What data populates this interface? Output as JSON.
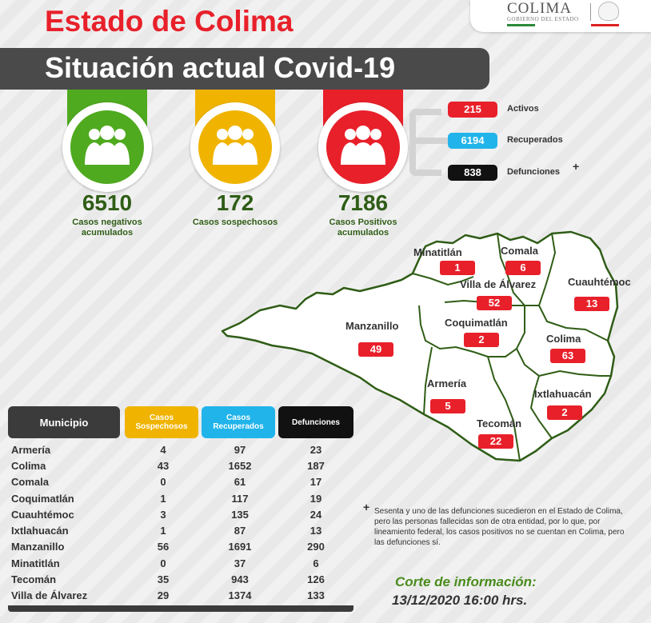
{
  "header": {
    "title": "Estado de Colima",
    "subtitle": "Situación actual Covid-19"
  },
  "logo": {
    "text": "COLIMA",
    "sub": "GOBIERNO DEL ESTADO"
  },
  "colors": {
    "red": "#e8202a",
    "green": "#4faa1f",
    "yellow": "#f0b400",
    "blue": "#21b4ea",
    "black": "#111111",
    "dark_green_text": "#2f5d16"
  },
  "stats": [
    {
      "value": "6510",
      "label": "Casos negativos acumulados",
      "color": "#4faa1f",
      "icon": "people-group-icon"
    },
    {
      "value": "172",
      "label": "Casos sospechosos",
      "color": "#f0b400",
      "icon": "people-group-icon"
    },
    {
      "value": "7186",
      "label": "Casos Positivos acumulados",
      "color": "#e8202a",
      "icon": "people-group-icon"
    }
  ],
  "breakdown": [
    {
      "value": "215",
      "label": "Activos",
      "color": "#e8202a"
    },
    {
      "value": "6194",
      "label": "Recuperados",
      "color": "#21b4ea"
    },
    {
      "value": "838",
      "label": "Defunciones",
      "color": "#111111",
      "mark": "+"
    }
  ],
  "map": {
    "municipalities": [
      {
        "name": "Minatitlán",
        "value": "1"
      },
      {
        "name": "Comala",
        "value": "6"
      },
      {
        "name": "Villa de Álvarez",
        "value": "52"
      },
      {
        "name": "Cuauhtémoc",
        "value": "13"
      },
      {
        "name": "Manzanillo",
        "value": "49"
      },
      {
        "name": "Coquimatlán",
        "value": "2"
      },
      {
        "name": "Colima",
        "value": "63"
      },
      {
        "name": "Armería",
        "value": "5"
      },
      {
        "name": "Ixtlahuacán",
        "value": "2"
      },
      {
        "name": "Tecomán",
        "value": "22"
      }
    ]
  },
  "table": {
    "headers": {
      "municipio": "Municipio",
      "sospechosos_1": "Casos",
      "sospechosos_2": "Sospechosos",
      "recuperados_1": "Casos",
      "recuperados_2": "Recuperados",
      "defunciones": "Defunciones"
    },
    "rows": [
      {
        "municipio": "Armería",
        "sospechosos": "4",
        "recuperados": "97",
        "defunciones": "23"
      },
      {
        "municipio": "Colima",
        "sospechosos": "43",
        "recuperados": "1652",
        "defunciones": "187"
      },
      {
        "municipio": "Comala",
        "sospechosos": "0",
        "recuperados": "61",
        "defunciones": "17"
      },
      {
        "municipio": "Coquimatlán",
        "sospechosos": "1",
        "recuperados": "117",
        "defunciones": "19"
      },
      {
        "municipio": "Cuauhtémoc",
        "sospechosos": "3",
        "recuperados": "135",
        "defunciones": "24"
      },
      {
        "municipio": "Ixtlahuacán",
        "sospechosos": "1",
        "recuperados": "87",
        "defunciones": "13"
      },
      {
        "municipio": "Manzanillo",
        "sospechosos": "56",
        "recuperados": "1691",
        "defunciones": "290"
      },
      {
        "municipio": "Minatitlán",
        "sospechosos": "0",
        "recuperados": "37",
        "defunciones": "6"
      },
      {
        "municipio": "Tecomán",
        "sospechosos": "35",
        "recuperados": "943",
        "defunciones": "126"
      },
      {
        "municipio": "Villa de Álvarez",
        "sospechosos": "29",
        "recuperados": "1374",
        "defunciones": "133"
      }
    ]
  },
  "note": {
    "mark": "+",
    "text": "Sesenta y uno de las defunciones sucedieron en el Estado de Colima, pero las personas fallecidas son de otra entidad, por lo que, por lineamiento federal, los casos positivos no se cuentan en Colima, pero las defunciones sí."
  },
  "corte": {
    "line1": "Corte de información:",
    "line2": "13/12/2020 16:00 hrs."
  }
}
